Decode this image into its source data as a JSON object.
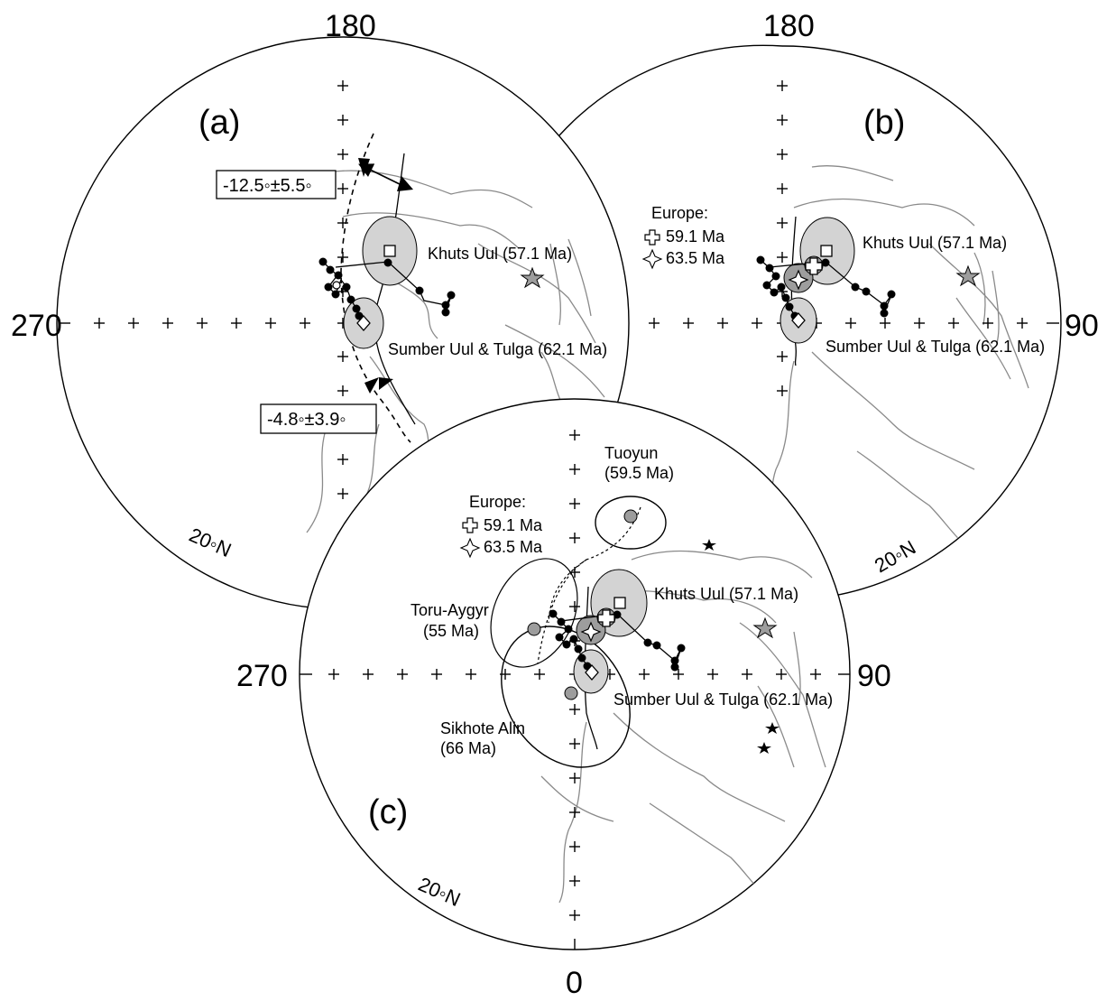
{
  "axis_labels": {
    "top_a": "180",
    "left_a": "270",
    "top_b": "180",
    "right_b": "90",
    "left_c": "270",
    "right_c": "90",
    "bottom_c": "0"
  },
  "panels": {
    "a": "(a)",
    "b": "(b)",
    "c": "(c)"
  },
  "latitude_label": "20◦N",
  "poles": {
    "khuts_uul": "Khuts Uul (57.1 Ma)",
    "sumber_uul": "Sumber Uul & Tulga (62.1 Ma)",
    "tuoyun_name": "Tuoyun",
    "tuoyun_age": "(59.5 Ma)",
    "toru_name": "Toru-Aygyr",
    "toru_age": "(55 Ma)",
    "sikhote_name": "Sikhote Alin",
    "sikhote_age": "(66 Ma)"
  },
  "europe_legend": {
    "title": "Europe:",
    "cross_age": "59.1 Ma",
    "star_age": "63.5 Ma"
  },
  "boxes": {
    "upper": "-12.5◦±5.5◦",
    "lower": "-4.8◦±3.9◦"
  },
  "colors": {
    "ellipse_fill": "#d3d3d3",
    "european_pole_fill": "#9d9d9d",
    "coastline": "#8a8a8a",
    "ink": "#000000"
  }
}
